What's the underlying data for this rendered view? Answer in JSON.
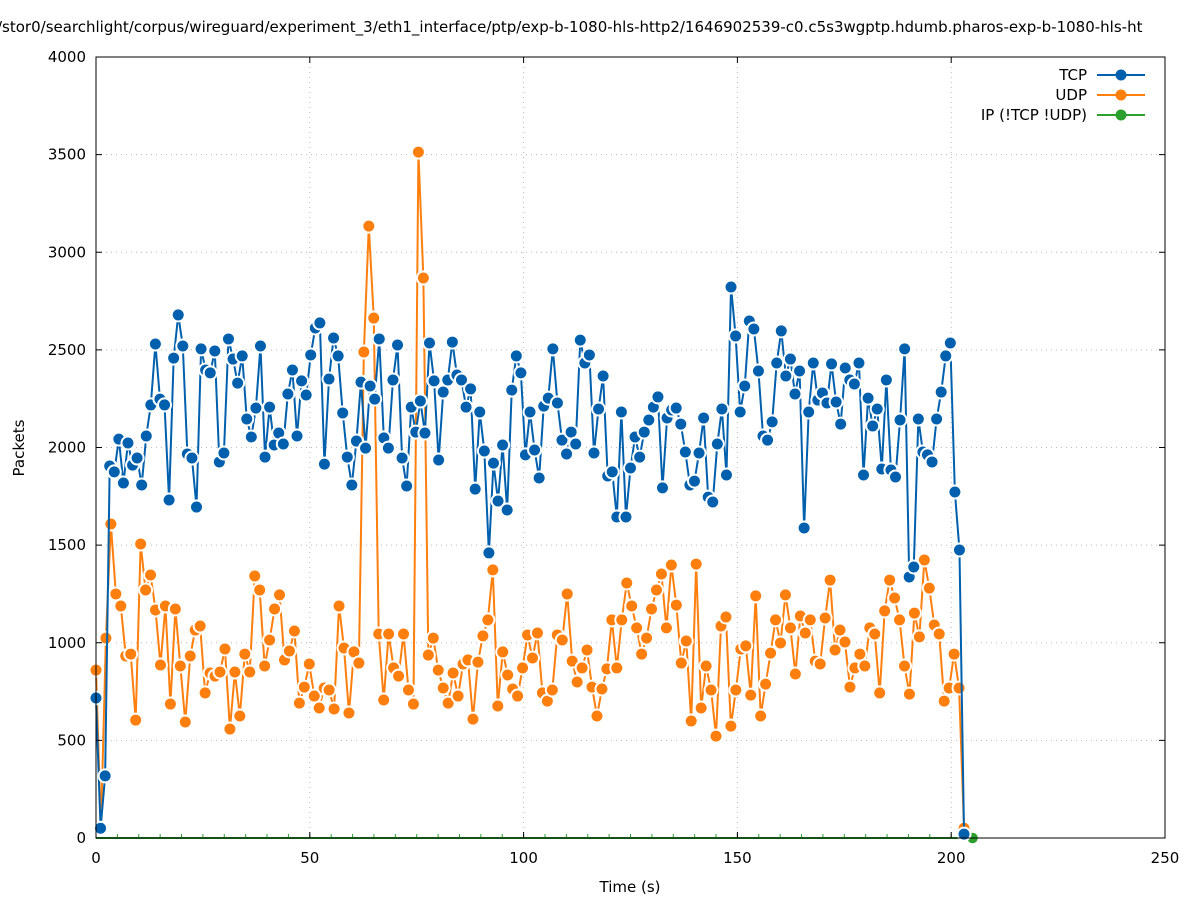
{
  "chart_data": {
    "type": "line",
    "title": "/stor0/searchlight/corpus/wireguard/experiment_3/eth1_interface/ptp/exp-b-1080-hls-http2/1646902539-c0.c5s3wgptp.hdumb.pharos-exp-b-1080-hls-ht",
    "xlabel": "Time (s)",
    "ylabel": "Packets",
    "xlim": [
      0,
      250
    ],
    "ylim": [
      0,
      4000
    ],
    "xticks": [
      "0",
      "50",
      "100",
      "150",
      "200",
      "250"
    ],
    "yticks": [
      "0",
      "500",
      "1000",
      "1500",
      "2000",
      "2500",
      "3000",
      "3500",
      "4000"
    ],
    "grid": true,
    "legend_position": "top-right",
    "series": [
      {
        "name": "TCP",
        "color": "#0060ad",
        "x_range": [
          0,
          203
        ],
        "values": [
          717,
          50,
          318,
          1905,
          1875,
          2043,
          1818,
          2023,
          1910,
          1946,
          1808,
          2059,
          2218,
          2530,
          2248,
          2218,
          1731,
          2458,
          2679,
          2520,
          1967,
          1946,
          1695,
          2505,
          2397,
          2382,
          2494,
          1926,
          1972,
          2556,
          2453,
          2330,
          2469,
          2146,
          2054,
          2202,
          2520,
          1951,
          2207,
          2013,
          2074,
          2018,
          2274,
          2397,
          2059,
          2341,
          2269,
          2474,
          2612,
          2638,
          1915,
          2351,
          2561,
          2469,
          2177,
          1951,
          1808,
          2033,
          2335,
          1997,
          2315,
          2248,
          2556,
          2049,
          1997,
          2346,
          2525,
          1946,
          1803,
          2207,
          2079,
          2238,
          2074,
          2535,
          2341,
          1936,
          2284,
          2346,
          2540,
          2371,
          2346,
          2207,
          2300,
          1787,
          2182,
          1982,
          1460,
          1920,
          1726,
          2013,
          1680,
          2294,
          2469,
          2382,
          1962,
          2182,
          1987,
          1844,
          2212,
          2253,
          2505,
          2228,
          2038,
          1967,
          2079,
          2018,
          2550,
          2433,
          2474,
          1972,
          2197,
          2366,
          1854,
          1875,
          1644,
          2182,
          1644,
          1895,
          2054,
          1951,
          2079,
          2141,
          2207,
          2259,
          1793,
          2151,
          2192,
          2202,
          2120,
          1977,
          1808,
          1828,
          1972,
          2151,
          1746,
          1721,
          2018,
          2197,
          1859,
          2822,
          2571,
          2182,
          2315,
          2648,
          2607,
          2392,
          2059,
          2038,
          2131,
          2433,
          2597,
          2366,
          2453,
          2274,
          2392,
          1588,
          2182,
          2433,
          2243,
          2279,
          2228,
          2428,
          2233,
          2120,
          2407,
          2346,
          2325,
          2433,
          1859,
          2253,
          2110,
          2197,
          1890,
          2346,
          1885,
          1849,
          2141,
          2505,
          1337,
          1388,
          2146,
          1977,
          1962,
          1926,
          2146,
          2284,
          2469,
          2535,
          1772,
          1475,
          20
        ]
      },
      {
        "name": "UDP",
        "color": "#ff7f0e",
        "x_range": [
          0,
          203
        ],
        "values": [
          860,
          50,
          1024,
          1608,
          1250,
          1188,
          932,
          942,
          604,
          1506,
          1270,
          1347,
          1168,
          886,
          1188,
          686,
          1173,
          881,
          594,
          932,
          1065,
          1086,
          743,
          845,
          829,
          850,
          968,
          558,
          850,
          625,
          942,
          850,
          1342,
          1270,
          881,
          1014,
          1173,
          1245,
          912,
          958,
          1060,
          691,
          773,
          891,
          727,
          666,
          768,
          758,
          661,
          1188,
          973,
          640,
          953,
          896,
          2489,
          3134,
          2663,
          1045,
          707,
          1045,
          871,
          829,
          1045,
          758,
          686,
          3513,
          2868,
          937,
          1024,
          860,
          768,
          691,
          845,
          727,
          891,
          912,
          609,
          901,
          1035,
          1117,
          1373,
          676,
          953,
          835,
          763,
          727,
          871,
          1040,
          922,
          1050,
          743,
          701,
          758,
          1040,
          1014,
          1250,
          906,
          799,
          871,
          963,
          773,
          625,
          763,
          866,
          1117,
          871,
          1117,
          1306,
          1188,
          1076,
          942,
          1024,
          1173,
          1270,
          1352,
          1076,
          1398,
          1193,
          896,
          1009,
          599,
          1403,
          666,
          881,
          758,
          522,
          1086,
          1132,
          573,
          758,
          968,
          984,
          732,
          1240,
          625,
          788,
          947,
          1117,
          999,
          1245,
          1076,
          840,
          1137,
          1050,
          1117,
          906,
          891,
          1127,
          1321,
          963,
          1065,
          1004,
          773,
          871,
          942,
          881,
          1076,
          1045,
          743,
          1163,
          1321,
          1229,
          1117,
          881,
          737,
          1152,
          1030,
          1424,
          1280,
          1091,
          1045,
          701,
          768,
          942,
          768,
          50
        ]
      },
      {
        "name": "IP (!TCP  !UDP)",
        "color": "#2ca02c",
        "x_range": [
          0,
          205
        ],
        "values": [
          0,
          0,
          0,
          0,
          0,
          0,
          0,
          0,
          0,
          0,
          0,
          0,
          0,
          0,
          0,
          0,
          0,
          0,
          0,
          0,
          0,
          0,
          0,
          0,
          0,
          0,
          0,
          0,
          0,
          0,
          0,
          0,
          0,
          0,
          0,
          0,
          0,
          0,
          0,
          0,
          0,
          0
        ]
      }
    ]
  }
}
